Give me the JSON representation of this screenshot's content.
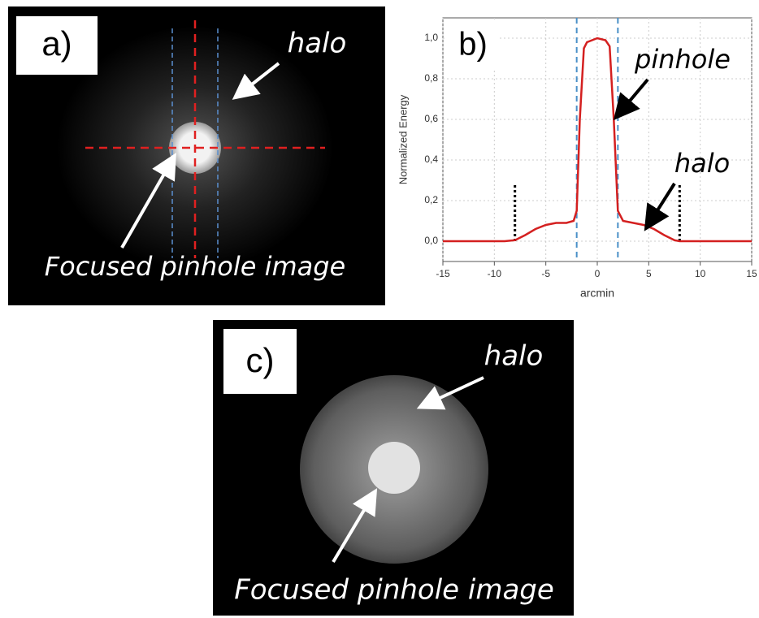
{
  "chart_data": {
    "type": "line",
    "label": "b)",
    "y_label": "Normalized Energy",
    "x_label": "arcmin",
    "x": [
      -15,
      -9,
      -8,
      -7,
      -6,
      -5,
      -4,
      -3,
      -2.3,
      -2,
      -1.7,
      -1.3,
      -1,
      0,
      0.8,
      1.2,
      1.6,
      2,
      2.5,
      3.5,
      4.5,
      5.5,
      6.5,
      7.5,
      8,
      15
    ],
    "values": [
      0,
      0,
      0.005,
      0.03,
      0.06,
      0.08,
      0.09,
      0.09,
      0.1,
      0.15,
      0.6,
      0.95,
      0.98,
      1.0,
      0.99,
      0.96,
      0.6,
      0.15,
      0.1,
      0.09,
      0.08,
      0.06,
      0.03,
      0.005,
      0,
      0
    ],
    "color": "#d42020",
    "xlim": [
      -15,
      15
    ],
    "xticks": [
      -15,
      -10,
      -5,
      0,
      5,
      10,
      15
    ],
    "ylim": [
      -0.1,
      1.1
    ],
    "yticks": [
      {
        "value": 0,
        "label": "0,0"
      },
      {
        "value": 0.2,
        "label": "0,2"
      },
      {
        "value": 0.4,
        "label": "0,4"
      },
      {
        "value": 0.6,
        "label": "0,6"
      },
      {
        "value": 0.8,
        "label": "0,8"
      },
      {
        "value": 1.0,
        "label": "1,0"
      }
    ],
    "grid": true,
    "pinhole_edges": [
      -2,
      2
    ],
    "halo_edges": [
      -8,
      8
    ],
    "halo_edge_height": 0.28,
    "annotations": [
      "pinhole",
      "halo"
    ]
  },
  "panel_a": {
    "label": "a)",
    "halo": "halo",
    "caption": "Focused pinhole image"
  },
  "panel_c": {
    "label": "c)",
    "halo": "halo",
    "caption": "Focused pinhole image"
  }
}
